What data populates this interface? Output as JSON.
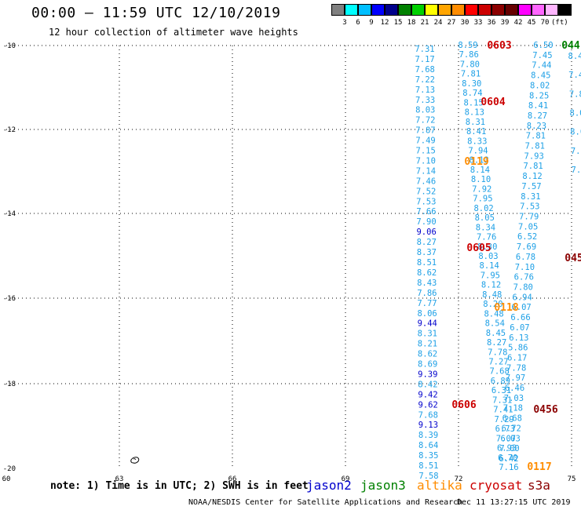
{
  "title": "00:00 – 11:59 UTC 12/10/2019",
  "subtitle": "12 hour collection of altimeter wave heights",
  "scale": {
    "colors": [
      "#808080",
      "#00ffff",
      "#00bfff",
      "#0000ff",
      "#00008b",
      "#008000",
      "#00d000",
      "#ffff00",
      "#ffa500",
      "#ff8c00",
      "#ff0000",
      "#cc0000",
      "#8b0000",
      "#660000",
      "#ff00ff",
      "#ff66ff",
      "#ffb6ff",
      "#000000"
    ],
    "labels": [
      "3",
      "6",
      "9",
      "12",
      "15",
      "18",
      "21",
      "24",
      "27",
      "30",
      "33",
      "36",
      "39",
      "42",
      "45",
      "70",
      "(ft)"
    ]
  },
  "axes": {
    "x_ticks": [
      "60",
      "63",
      "66",
      "69",
      "72",
      "75"
    ],
    "y_ticks": [
      "-10",
      "-12",
      "-14",
      "-16",
      "-18",
      "-20"
    ]
  },
  "note": "note: 1) Time is in UTC; 2) SWH is in feet",
  "legend": [
    {
      "name": "jason2",
      "color": "#0000cc"
    },
    {
      "name": "jason3",
      "color": "#008000"
    },
    {
      "name": "altika",
      "color": "#ff8c00"
    },
    {
      "name": "cryosat",
      "color": "#cc0000"
    },
    {
      "name": "s3a",
      "color": "#8b0000"
    }
  ],
  "footer_left": "NOAA/NESDIS Center for Satellite Applications and Research",
  "footer_right": "Dec 11 13:27:15 UTC 2019",
  "track_a": [
    "7.31",
    "7.17",
    "7.68",
    "7.22",
    "7.13",
    "7.33",
    "8.03",
    "7.72",
    "7.87",
    "7.49",
    "7.15",
    "7.10",
    "7.14",
    "7.46",
    "7.52",
    "7.53",
    "7.66",
    "7.90",
    "9.06",
    "8.27",
    "8.37",
    "8.51",
    "8.62",
    "8.43",
    "7.86",
    "7.77",
    "8.06",
    "9.44",
    "8.31",
    "8.21",
    "8.62",
    "8.69",
    "9.39",
    "8.42",
    "9.42",
    "9.62",
    "7.68",
    "9.13",
    "8.39",
    "8.64",
    "8.35",
    "8.51",
    "7.58"
  ],
  "track_b": [
    "8.59",
    "7.86",
    "7.80",
    "7.81",
    "8.30",
    "8.74",
    "8.15",
    "8.13",
    "8.31",
    "8.41",
    "8.33",
    "7.94",
    "8.13",
    "8.14",
    "8.10",
    "7.92",
    "7.95",
    "8.02",
    "8.05",
    "8.34",
    "7.76",
    "8.30",
    "8.03",
    "8.14",
    "7.95",
    "8.12",
    "8.48",
    "8.20",
    "8.48",
    "8.54",
    "8.45",
    "8.27",
    "7.78",
    "7.27",
    "7.68",
    "6.89",
    "6.31",
    "7.31",
    "7.41",
    "7.29",
    "6.73",
    "7.07",
    "6.93",
    "6.70",
    "7.16"
  ],
  "track_c": [
    "6.50",
    "7.45",
    "7.44",
    "8.45",
    "8.02",
    "8.25",
    "8.41",
    "8.27",
    "8.23",
    "7.81",
    "7.81",
    "7.93",
    "7.81",
    "8.12",
    "7.57",
    "8.31",
    "7.53",
    "7.79",
    "7.05",
    "6.52",
    "7.69",
    "6.78",
    "7.10",
    "6.76",
    "7.80",
    "6.94",
    "6.07",
    "6.66",
    "6.07",
    "6.13",
    "5.86",
    "6.17",
    "7.78",
    "7.97",
    "6.46",
    "7.03",
    "7.18",
    "6.68",
    "6.72",
    "6.03",
    "7.00",
    "6.42"
  ],
  "track_d": [
    "8.4",
    "7.4",
    "7.8",
    "8.0",
    "8.0",
    "7.6",
    "7.7"
  ],
  "passes": [
    {
      "text": "0603",
      "color": "#cc0000"
    },
    {
      "text": "0604",
      "color": "#cc0000"
    },
    {
      "text": "0119",
      "color": "#ff8c00"
    },
    {
      "text": "0605",
      "color": "#cc0000"
    },
    {
      "text": "0118",
      "color": "#ff8c00"
    },
    {
      "text": "0606",
      "color": "#cc0000"
    },
    {
      "text": "0456",
      "color": "#8b0000"
    },
    {
      "text": "0117",
      "color": "#ff8c00"
    },
    {
      "text": "045",
      "color": "#8b0000"
    },
    {
      "text": "044",
      "color": "#008000"
    }
  ],
  "jason_values": [
    "9.06",
    "9.44",
    "9.39",
    "9.42",
    "9.62",
    "9.13"
  ]
}
